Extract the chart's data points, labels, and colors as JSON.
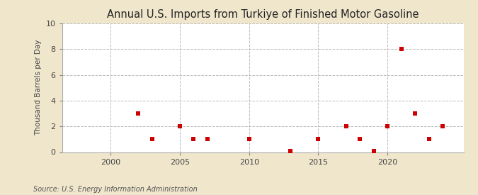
{
  "title": "Annual U.S. Imports from Turkiye of Finished Motor Gasoline",
  "ylabel": "Thousand Barrels per Day",
  "source": "Source: U.S. Energy Information Administration",
  "background_color": "#f0e6cc",
  "plot_background_color": "#ffffff",
  "marker_color": "#cc0000",
  "marker_size": 16,
  "xlim": [
    1996.5,
    2025.5
  ],
  "ylim": [
    0,
    10
  ],
  "xticks": [
    2000,
    2005,
    2010,
    2015,
    2020
  ],
  "yticks": [
    0,
    2,
    4,
    6,
    8,
    10
  ],
  "data": [
    [
      2002,
      3
    ],
    [
      2003,
      1
    ],
    [
      2005,
      2
    ],
    [
      2006,
      1
    ],
    [
      2007,
      1
    ],
    [
      2010,
      1
    ],
    [
      2013,
      0.07
    ],
    [
      2015,
      1
    ],
    [
      2017,
      2
    ],
    [
      2018,
      1
    ],
    [
      2019,
      0.07
    ],
    [
      2020,
      2
    ],
    [
      2021,
      8
    ],
    [
      2022,
      3
    ],
    [
      2023,
      1
    ],
    [
      2024,
      2
    ]
  ]
}
